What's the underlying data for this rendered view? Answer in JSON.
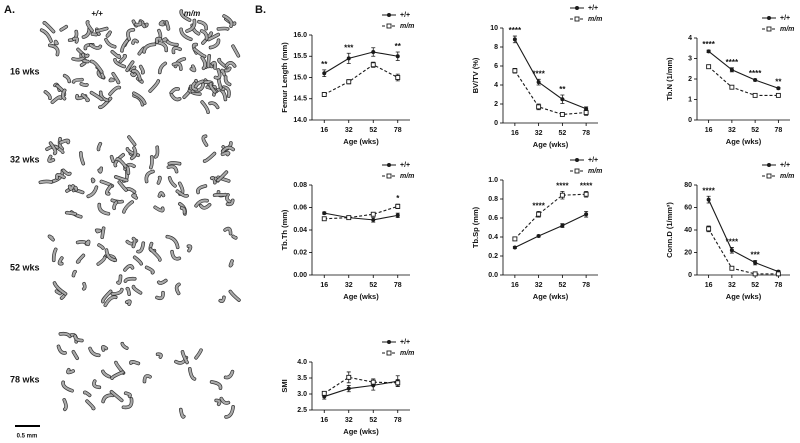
{
  "panel_a": {
    "label": "A.",
    "columns": [
      "+/+",
      "m/m"
    ],
    "rows": [
      "16 wks",
      "32 wks",
      "52 wks",
      "78 wks"
    ],
    "scale_bar": "0.5 mm"
  },
  "panel_b_label": "B.",
  "chart_data": [
    {
      "type": "line",
      "y_label": "Femur Length (mm)",
      "x_label": "Age (wks)",
      "categories": [
        "16",
        "32",
        "52",
        "78"
      ],
      "series": [
        {
          "name": "+/+",
          "color": "#1a1a1a",
          "marker": "circle",
          "dash": "solid",
          "values": [
            15.1,
            15.45,
            15.6,
            15.5
          ],
          "errors": [
            0.08,
            0.12,
            0.1,
            0.1
          ]
        },
        {
          "name": "m/m",
          "color": "#1a1a1a",
          "marker": "square",
          "dash": "dashed",
          "italic": true,
          "values": [
            14.6,
            14.9,
            15.3,
            15.0
          ],
          "errors": [
            0.05,
            0.05,
            0.06,
            0.08
          ]
        }
      ],
      "ylim": [
        14.0,
        16.0
      ],
      "yticks": [
        {
          "value": 14,
          "label": "14.0"
        },
        14.5,
        {
          "value": 15,
          "label": "15.0"
        },
        15.5,
        {
          "value": 16,
          "label": "16.0"
        }
      ],
      "annotations": [
        "**",
        "***",
        null,
        "**"
      ]
    },
    {
      "type": "line",
      "y_label": "BV/TV (%)",
      "x_label": "Age (wks)",
      "categories": [
        "16",
        "32",
        "52",
        "78"
      ],
      "series": [
        {
          "name": "+/+",
          "color": "#1a1a1a",
          "marker": "circle",
          "dash": "solid",
          "values": [
            8.8,
            4.3,
            2.5,
            1.5
          ],
          "errors": [
            0.35,
            0.3,
            0.45,
            0.2
          ]
        },
        {
          "name": "m/m",
          "color": "#1a1a1a",
          "marker": "square",
          "dash": "dashed",
          "italic": true,
          "values": [
            5.5,
            1.7,
            0.9,
            1.1
          ],
          "errors": [
            0.25,
            0.3,
            0.1,
            0.3
          ]
        }
      ],
      "ylim": [
        0,
        10
      ],
      "yticks": [
        0,
        2,
        4,
        6,
        8,
        10
      ],
      "annotations": [
        "****",
        "****",
        "**",
        null
      ]
    },
    {
      "type": "line",
      "y_label": "Tb.N (1/mm)",
      "x_label": "Age (wks)",
      "categories": [
        "16",
        "32",
        "52",
        "78"
      ],
      "series": [
        {
          "name": "+/+",
          "color": "#1a1a1a",
          "marker": "circle",
          "dash": "solid",
          "values": [
            3.35,
            2.45,
            1.95,
            1.55
          ],
          "errors": [
            0.06,
            0.1,
            0.05,
            0.04
          ]
        },
        {
          "name": "m/m",
          "color": "#1a1a1a",
          "marker": "square",
          "dash": "dashed",
          "italic": true,
          "values": [
            2.6,
            1.6,
            1.2,
            1.2
          ],
          "errors": [
            0.05,
            0.05,
            0.04,
            0.04
          ]
        }
      ],
      "ylim": [
        0,
        4
      ],
      "yticks": [
        0,
        1,
        2,
        3,
        4
      ],
      "annotations": [
        "****",
        "****",
        "****",
        "**"
      ]
    },
    {
      "type": "line",
      "y_label": "Tb.Th (mm)",
      "x_label": "Age (wks)",
      "categories": [
        "16",
        "32",
        "52",
        "78"
      ],
      "series": [
        {
          "name": "+/+",
          "color": "#1a1a1a",
          "marker": "circle",
          "dash": "solid",
          "values": [
            0.055,
            0.051,
            0.049,
            0.053
          ],
          "errors": [
            0.001,
            0.001,
            0.002,
            0.002
          ]
        },
        {
          "name": "m/m",
          "color": "#1a1a1a",
          "marker": "square",
          "dash": "dashed",
          "italic": true,
          "values": [
            0.05,
            0.051,
            0.054,
            0.061
          ],
          "errors": [
            0.001,
            0.001,
            0.001,
            0.002
          ]
        }
      ],
      "ylim": [
        0,
        0.08
      ],
      "yticks": [
        {
          "value": 0,
          "label": "0.00"
        },
        0.02,
        0.04,
        0.06,
        0.08
      ],
      "annotations": [
        null,
        null,
        null,
        "*"
      ]
    },
    {
      "type": "line",
      "y_label": "Tb.Sp (mm)",
      "x_label": "Age (wks)",
      "categories": [
        "16",
        "32",
        "52",
        "78"
      ],
      "series": [
        {
          "name": "+/+",
          "color": "#1a1a1a",
          "marker": "circle",
          "dash": "solid",
          "values": [
            0.29,
            0.41,
            0.52,
            0.64
          ],
          "errors": [
            0.01,
            0.01,
            0.02,
            0.03
          ]
        },
        {
          "name": "m/m",
          "color": "#1a1a1a",
          "marker": "square",
          "dash": "dashed",
          "italic": true,
          "values": [
            0.38,
            0.64,
            0.84,
            0.85
          ],
          "errors": [
            0.01,
            0.03,
            0.04,
            0.03
          ]
        }
      ],
      "ylim": [
        0,
        1.0
      ],
      "yticks": [
        {
          "value": 0,
          "label": "0.0"
        },
        0.2,
        0.4,
        0.6,
        0.8,
        {
          "value": 1,
          "label": "1.0"
        }
      ],
      "annotations": [
        null,
        "****",
        "****",
        "****"
      ]
    },
    {
      "type": "line",
      "y_label": "Conn.D (1/mm³)",
      "x_label": "Age (wks)",
      "categories": [
        "16",
        "32",
        "52",
        "78"
      ],
      "series": [
        {
          "name": "+/+",
          "color": "#1a1a1a",
          "marker": "circle",
          "dash": "solid",
          "values": [
            67,
            22,
            11,
            3
          ],
          "errors": [
            3,
            2.5,
            2,
            1
          ]
        },
        {
          "name": "m/m",
          "color": "#1a1a1a",
          "marker": "square",
          "dash": "dashed",
          "italic": true,
          "values": [
            41,
            6,
            1,
            1
          ],
          "errors": [
            2.5,
            1,
            0.5,
            0.5
          ]
        }
      ],
      "ylim": [
        0,
        80
      ],
      "yticks": [
        0,
        20,
        40,
        60,
        80
      ],
      "annotations": [
        "****",
        "****",
        "***",
        null
      ]
    },
    {
      "type": "line",
      "y_label": "SMI",
      "x_label": "Age (wks)",
      "categories": [
        "16",
        "32",
        "52",
        "78"
      ],
      "series": [
        {
          "name": "+/+",
          "color": "#1a1a1a",
          "marker": "circle",
          "dash": "solid",
          "values": [
            2.92,
            3.17,
            3.27,
            3.4
          ],
          "errors": [
            0.08,
            0.1,
            0.15,
            0.17
          ]
        },
        {
          "name": "m/m",
          "color": "#1a1a1a",
          "marker": "square",
          "dash": "dashed",
          "italic": true,
          "values": [
            3.02,
            3.52,
            3.37,
            3.35
          ],
          "errors": [
            0.06,
            0.17,
            0.1,
            0.1
          ]
        }
      ],
      "ylim": [
        2.5,
        4.0
      ],
      "yticks": [
        2.5,
        {
          "value": 3,
          "label": "3.0"
        },
        3.5,
        {
          "value": 4,
          "label": "4.0"
        }
      ],
      "annotations": [
        null,
        null,
        null,
        null
      ]
    }
  ]
}
